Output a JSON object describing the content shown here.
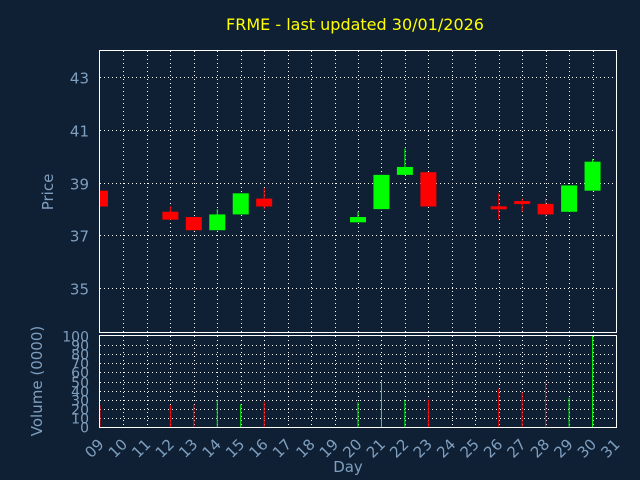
{
  "chart_data": {
    "type": "candlestick",
    "title": "FRME - last updated 30/01/2026",
    "xlabel": "Day",
    "ylabel": "Price",
    "volume_ylabel": "Volume (0000)",
    "x_ticks": [
      "09",
      "10",
      "11",
      "12",
      "13",
      "14",
      "15",
      "16",
      "17",
      "18",
      "19",
      "20",
      "21",
      "22",
      "23",
      "24",
      "25",
      "26",
      "27",
      "28",
      "29",
      "30",
      "31"
    ],
    "price_ylim": [
      33.3,
      44.0
    ],
    "price_yticks": [
      35,
      37,
      39,
      41,
      43
    ],
    "volume_ylim": [
      0,
      100
    ],
    "volume_yticks": [
      0,
      10,
      20,
      30,
      40,
      50,
      60,
      70,
      80,
      90,
      100
    ],
    "grid": true,
    "colors": {
      "up": "#00ff00",
      "down": "#ff0000",
      "title": "#ffff00",
      "axis_text": "#7f9fbf",
      "background": "#0f2035"
    },
    "candles": [
      {
        "day": "09",
        "open": 38.7,
        "high": 38.7,
        "low": 38.1,
        "close": 38.1,
        "volume": 24
      },
      {
        "day": "12",
        "open": 37.9,
        "high": 38.1,
        "low": 37.6,
        "close": 37.6,
        "volume": 24
      },
      {
        "day": "13",
        "open": 37.7,
        "high": 37.7,
        "low": 37.2,
        "close": 37.2,
        "volume": 25
      },
      {
        "day": "14",
        "open": 37.2,
        "high": 38.0,
        "low": 37.2,
        "close": 37.8,
        "volume": 30
      },
      {
        "day": "15",
        "open": 37.8,
        "high": 38.6,
        "low": 37.8,
        "close": 38.6,
        "volume": 25
      },
      {
        "day": "16",
        "open": 38.4,
        "high": 38.8,
        "low": 38.0,
        "close": 38.1,
        "volume": 28
      },
      {
        "day": "20",
        "open": 37.5,
        "high": 37.9,
        "low": 37.5,
        "close": 37.7,
        "volume": 27
      },
      {
        "day": "21",
        "open": 38.0,
        "high": 39.3,
        "low": 38.0,
        "close": 39.3,
        "volume": 50
      },
      {
        "day": "22",
        "open": 39.3,
        "high": 40.3,
        "low": 39.3,
        "close": 39.6,
        "volume": 30
      },
      {
        "day": "23",
        "open": 39.4,
        "high": 39.4,
        "low": 38.1,
        "close": 38.1,
        "volume": 30
      },
      {
        "day": "26",
        "open": 38.1,
        "high": 38.6,
        "low": 37.6,
        "close": 38.0,
        "volume": 42
      },
      {
        "day": "27",
        "open": 38.3,
        "high": 38.4,
        "low": 37.9,
        "close": 38.2,
        "volume": 38
      },
      {
        "day": "28",
        "open": 38.2,
        "high": 38.4,
        "low": 37.7,
        "close": 37.8,
        "volume": 50
      },
      {
        "day": "29",
        "open": 37.9,
        "high": 38.9,
        "low": 37.9,
        "close": 38.9,
        "volume": 32
      },
      {
        "day": "30",
        "open": 38.7,
        "high": 39.9,
        "low": 38.7,
        "close": 39.8,
        "volume": 100
      }
    ]
  }
}
